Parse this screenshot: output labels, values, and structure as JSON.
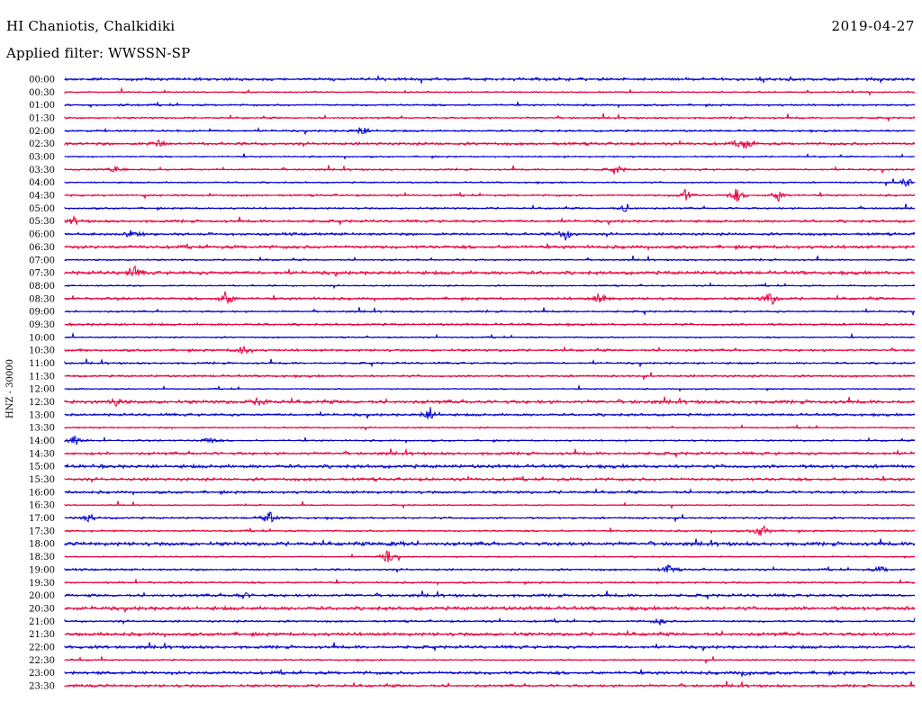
{
  "header": {
    "station": "HI Chaniotis, Chalkidiki",
    "date": "2019-04-27",
    "filter": "Applied filter: WWSSN-SP"
  },
  "chart_data": {
    "type": "line",
    "title": "HI Chaniotis, Chalkidiki",
    "ylabel": "HNZ - 30000",
    "rows": [
      "00:00",
      "00:30",
      "01:00",
      "01:30",
      "02:00",
      "02:30",
      "03:00",
      "03:30",
      "04:00",
      "04:30",
      "05:00",
      "05:30",
      "06:00",
      "06:30",
      "07:00",
      "07:30",
      "08:00",
      "08:30",
      "09:00",
      "09:30",
      "10:00",
      "10:30",
      "11:00",
      "11:30",
      "12:00",
      "12:30",
      "13:00",
      "13:30",
      "14:00",
      "14:30",
      "15:00",
      "15:30",
      "16:00",
      "16:30",
      "17:00",
      "17:30",
      "18:00",
      "18:30",
      "19:00",
      "19:30",
      "20:00",
      "20:30",
      "21:00",
      "21:30",
      "22:00",
      "22:30",
      "23:00",
      "23:30"
    ],
    "series_colors": [
      "#0000cc",
      "#e8003c"
    ],
    "grid": false,
    "legend": "none",
    "events": [
      {
        "row": 4,
        "x": 0.35,
        "amplitude": 0.7
      },
      {
        "row": 5,
        "x": 0.8,
        "amplitude": 0.9
      },
      {
        "row": 5,
        "x": 0.11,
        "amplitude": 0.5
      },
      {
        "row": 7,
        "x": 0.06,
        "amplitude": 0.5
      },
      {
        "row": 7,
        "x": 0.65,
        "amplitude": 0.5
      },
      {
        "row": 8,
        "x": 0.99,
        "amplitude": 0.8
      },
      {
        "row": 9,
        "x": 0.73,
        "amplitude": 0.8
      },
      {
        "row": 9,
        "x": 0.79,
        "amplitude": 0.9
      },
      {
        "row": 9,
        "x": 0.84,
        "amplitude": 0.7
      },
      {
        "row": 10,
        "x": 0.66,
        "amplitude": 0.5
      },
      {
        "row": 11,
        "x": 0.01,
        "amplitude": 0.5
      },
      {
        "row": 12,
        "x": 0.08,
        "amplitude": 0.6
      },
      {
        "row": 12,
        "x": 0.59,
        "amplitude": 0.8
      },
      {
        "row": 15,
        "x": 0.08,
        "amplitude": 0.9
      },
      {
        "row": 17,
        "x": 0.19,
        "amplitude": 1.0
      },
      {
        "row": 17,
        "x": 0.63,
        "amplitude": 0.7
      },
      {
        "row": 17,
        "x": 0.83,
        "amplitude": 1.0
      },
      {
        "row": 21,
        "x": 0.21,
        "amplitude": 0.7
      },
      {
        "row": 25,
        "x": 0.06,
        "amplitude": 0.5
      },
      {
        "row": 25,
        "x": 0.23,
        "amplitude": 0.6
      },
      {
        "row": 26,
        "x": 0.43,
        "amplitude": 1.0
      },
      {
        "row": 28,
        "x": 0.01,
        "amplitude": 0.7
      },
      {
        "row": 28,
        "x": 0.17,
        "amplitude": 0.6
      },
      {
        "row": 34,
        "x": 0.03,
        "amplitude": 0.5
      },
      {
        "row": 34,
        "x": 0.24,
        "amplitude": 0.9
      },
      {
        "row": 35,
        "x": 0.82,
        "amplitude": 1.0
      },
      {
        "row": 36,
        "x": 0.39,
        "amplitude": 0.6
      },
      {
        "row": 37,
        "x": 0.38,
        "amplitude": 0.8
      },
      {
        "row": 38,
        "x": 0.71,
        "amplitude": 0.6
      },
      {
        "row": 38,
        "x": 0.96,
        "amplitude": 0.5
      },
      {
        "row": 40,
        "x": 0.21,
        "amplitude": 0.4
      },
      {
        "row": 42,
        "x": 0.7,
        "amplitude": 0.4
      },
      {
        "row": 46,
        "x": 0.8,
        "amplitude": 0.4
      }
    ]
  }
}
